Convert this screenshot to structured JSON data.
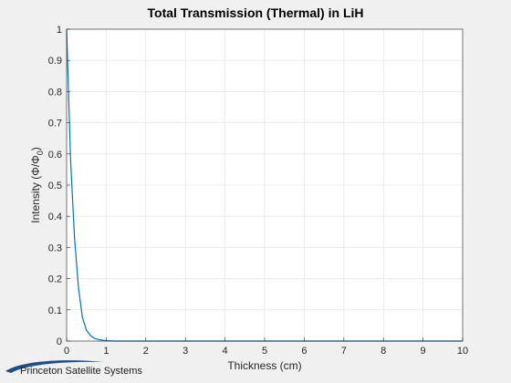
{
  "chart_data": {
    "type": "line",
    "title": "Total Transmission (Thermal) in LiH",
    "xlabel": "Thickness (cm)",
    "ylabel_main": "Intensity (Φ/Φ",
    "ylabel_sub": "0",
    "ylabel_close": ")",
    "xlim": [
      0,
      10
    ],
    "ylim": [
      0,
      1
    ],
    "xticks": [
      "0",
      "1",
      "2",
      "3",
      "4",
      "5",
      "6",
      "7",
      "8",
      "9",
      "10"
    ],
    "yticks": [
      "0",
      "0.1",
      "0.2",
      "0.3",
      "0.4",
      "0.5",
      "0.6",
      "0.7",
      "0.8",
      "0.9",
      "1"
    ],
    "grid": true,
    "series": [
      {
        "color": "#0072bd",
        "x": [
          0,
          0.1,
          0.2,
          0.3,
          0.4,
          0.5,
          0.6,
          0.7,
          0.8,
          0.9,
          1.0,
          1.2,
          1.5,
          2,
          3,
          4,
          5,
          6,
          7,
          8,
          9,
          10
        ],
        "y": [
          1.0,
          0.58,
          0.33,
          0.17,
          0.075,
          0.035,
          0.018,
          0.009,
          0.005,
          0.003,
          0.001,
          0.0,
          0.0,
          0.0,
          0.0,
          0.0,
          0.0,
          0.0,
          0.0,
          0.0,
          0.0,
          0.0
        ]
      }
    ]
  },
  "logo": {
    "text": "Princeton Satellite Systems"
  }
}
